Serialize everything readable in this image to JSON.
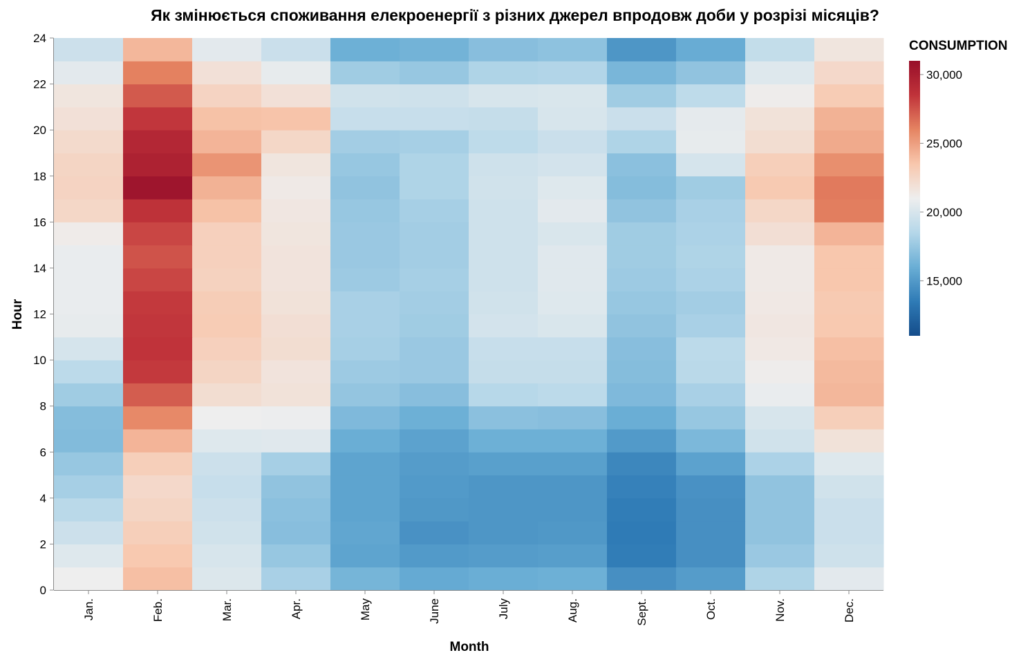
{
  "chart_data": {
    "type": "heatmap",
    "title": "Як змінюється споживання елекроенергії з різних джерел впродовж доби у розрізі місяців?",
    "xlabel": "Month",
    "ylabel": "Hour",
    "x_categories": [
      "Jan.",
      "Feb.",
      "Mar.",
      "Apr.",
      "May",
      "June",
      "July",
      "Aug.",
      "Sept.",
      "Oct.",
      "Nov.",
      "Dec."
    ],
    "hours": [
      0,
      1,
      2,
      3,
      4,
      5,
      6,
      7,
      8,
      9,
      10,
      11,
      12,
      13,
      14,
      15,
      16,
      17,
      18,
      19,
      20,
      21,
      22,
      23
    ],
    "ylim": [
      0,
      24
    ],
    "y_ticks": [
      "0",
      "2",
      "4",
      "6",
      "8",
      "10",
      "12",
      "14",
      "16",
      "18",
      "20",
      "22",
      "24"
    ],
    "legend": {
      "title": "CONSUMPTION",
      "domain": [
        11000,
        31000
      ],
      "tick_values": [
        15000,
        20000,
        25000,
        30000
      ],
      "tick_labels": [
        "15,000",
        "20,000",
        "25,000",
        "30,000"
      ],
      "placement": "right"
    },
    "color_scheme": {
      "name": "redblue",
      "stops": [
        "#144c8a",
        "#2f7bb6",
        "#6aaed5",
        "#b5d7e9",
        "#eeeeee",
        "#f8c7ad",
        "#e58462",
        "#c0333a",
        "#980f2a"
      ]
    },
    "values": [
      [
        21000,
        23800,
        20200,
        18100,
        16400,
        15800,
        16000,
        16100,
        14500,
        15100,
        18300,
        20500
      ],
      [
        20300,
        23400,
        20000,
        17500,
        15500,
        15000,
        15100,
        15200,
        13600,
        14500,
        17600,
        19600
      ],
      [
        19500,
        23000,
        19700,
        17000,
        15600,
        14600,
        14800,
        14900,
        13500,
        14500,
        17300,
        19400
      ],
      [
        18700,
        22600,
        19500,
        17100,
        15500,
        14900,
        14800,
        14800,
        13600,
        14500,
        17300,
        19400
      ],
      [
        18000,
        22400,
        19300,
        17300,
        15500,
        15000,
        14800,
        14800,
        13800,
        14600,
        17300,
        19700
      ],
      [
        17500,
        23000,
        19500,
        18000,
        15500,
        15100,
        15300,
        15300,
        14100,
        15400,
        18200,
        20300
      ],
      [
        16800,
        24200,
        20300,
        20400,
        16000,
        15400,
        16100,
        16100,
        15000,
        16600,
        19700,
        21800
      ],
      [
        16900,
        25800,
        21000,
        20900,
        16700,
        16100,
        17100,
        17000,
        16000,
        17500,
        20000,
        23000
      ],
      [
        17800,
        27200,
        22100,
        21800,
        17400,
        17000,
        18600,
        18800,
        16700,
        18100,
        20800,
        24100
      ],
      [
        18800,
        28300,
        22600,
        21700,
        17700,
        17600,
        19200,
        19200,
        16900,
        18700,
        21100,
        24000
      ],
      [
        19900,
        28500,
        22900,
        22100,
        18000,
        17600,
        19300,
        19300,
        17000,
        18800,
        21400,
        23800
      ],
      [
        20700,
        28400,
        23200,
        22000,
        18100,
        17800,
        19800,
        20100,
        17300,
        18100,
        21500,
        23400
      ],
      [
        20800,
        28300,
        23100,
        21800,
        18100,
        17900,
        19700,
        20300,
        17500,
        17900,
        21400,
        23300
      ],
      [
        20800,
        27900,
        22800,
        21700,
        17700,
        18000,
        19600,
        20400,
        17700,
        18200,
        21300,
        23500
      ],
      [
        20800,
        27500,
        22900,
        21700,
        17600,
        17900,
        19600,
        20400,
        17800,
        18300,
        21300,
        23500
      ],
      [
        21200,
        27900,
        22900,
        21600,
        17600,
        17900,
        19600,
        20100,
        17800,
        18200,
        22000,
        24200
      ],
      [
        22500,
        28600,
        23700,
        21500,
        17500,
        18000,
        19600,
        20500,
        17300,
        18100,
        22500,
        26200
      ],
      [
        22700,
        30600,
        24300,
        21300,
        17300,
        18300,
        19700,
        20300,
        16900,
        17800,
        23300,
        26300
      ],
      [
        22600,
        29700,
        25400,
        21600,
        17500,
        18300,
        19600,
        19800,
        17100,
        19900,
        23000,
        25600
      ],
      [
        22300,
        29300,
        24200,
        22500,
        17900,
        18000,
        18900,
        19400,
        18300,
        20700,
        22100,
        24600
      ],
      [
        21900,
        28400,
        23700,
        23600,
        19300,
        19300,
        19200,
        20000,
        19400,
        20600,
        21800,
        24300
      ],
      [
        21600,
        27300,
        22700,
        21900,
        19700,
        19600,
        20000,
        20100,
        17800,
        18900,
        21100,
        23200
      ],
      [
        20500,
        26100,
        21900,
        20700,
        17800,
        17500,
        18300,
        18400,
        16500,
        17300,
        20300,
        22400
      ],
      [
        19500,
        24100,
        20500,
        19400,
        16100,
        16300,
        17000,
        17200,
        14800,
        15900,
        19100,
        21600
      ]
    ]
  }
}
